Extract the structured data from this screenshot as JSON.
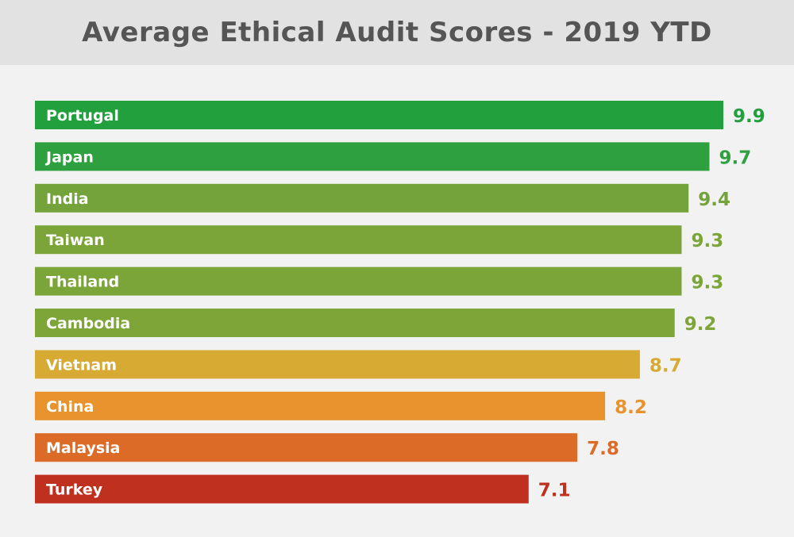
{
  "chart_data": {
    "type": "bar",
    "orientation": "horizontal",
    "title": "Average Ethical Audit Scores - 2019 YTD",
    "categories": [
      "Portugal",
      "Japan",
      "India",
      "Taiwan",
      "Thailand",
      "Cambodia",
      "Vietnam",
      "China",
      "Malaysia",
      "Turkey"
    ],
    "values": [
      9.9,
      9.7,
      9.4,
      9.3,
      9.3,
      9.2,
      8.7,
      8.2,
      7.8,
      7.1
    ],
    "value_labels": [
      "9.9",
      "9.7",
      "9.4",
      "9.3",
      "9.3",
      "9.2",
      "8.7",
      "8.2",
      "7.8",
      "7.1"
    ],
    "colors": [
      "#21a03d",
      "#2fa03f",
      "#73a33a",
      "#7ba538",
      "#7ba538",
      "#7da537",
      "#d6aa33",
      "#e8932e",
      "#dc6b27",
      "#c0301f"
    ],
    "xlim": [
      0,
      9.9
    ],
    "grid": false,
    "legend": "none"
  }
}
